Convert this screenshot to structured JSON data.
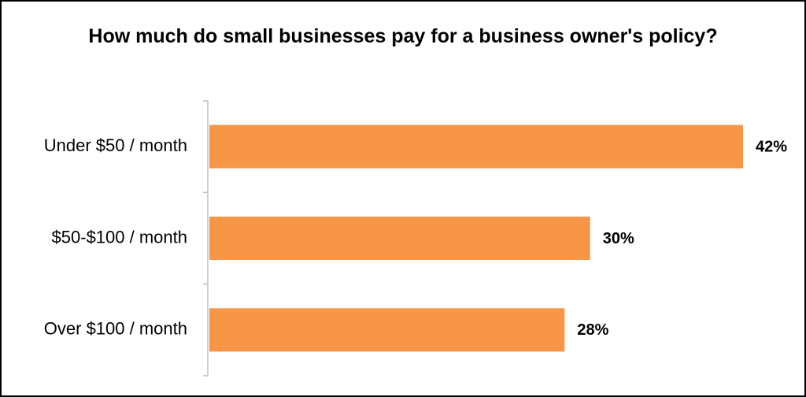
{
  "chart_data": {
    "type": "bar",
    "orientation": "horizontal",
    "title": "How much do small businesses pay for a business owner's policy?",
    "categories": [
      "Under $50 / month",
      "$50-$100 / month",
      "Over $100 / month"
    ],
    "values": [
      42,
      30,
      28
    ],
    "value_labels": [
      "42%",
      "30%",
      "28%"
    ],
    "color": "#f79646"
  }
}
